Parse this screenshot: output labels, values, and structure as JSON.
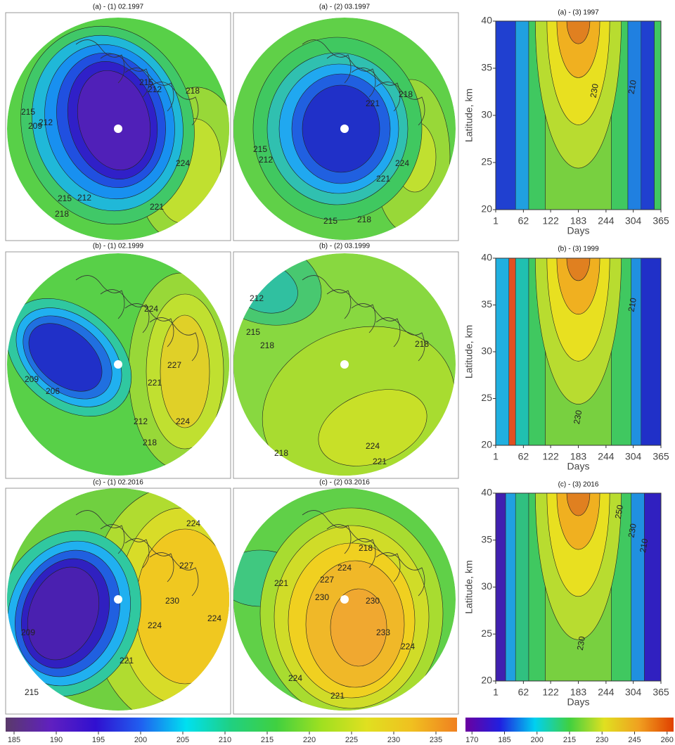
{
  "maps": [
    {
      "title": "(a) - (1)  02.1997",
      "contour_labels": [
        215,
        212,
        209,
        215,
        212,
        218,
        221,
        224,
        218,
        215,
        212
      ]
    },
    {
      "title": "(a) - (2)  03.1997",
      "contour_labels": [
        215,
        212,
        215,
        218,
        221,
        224,
        218,
        221
      ]
    },
    {
      "title": "(b) - (1)  02.1999",
      "contour_labels": [
        209,
        206,
        212,
        218,
        221,
        224,
        227,
        224
      ]
    },
    {
      "title": "(b) - (2)  03.1999",
      "contour_labels": [
        215,
        218,
        212,
        218,
        224,
        221,
        218
      ]
    },
    {
      "title": "(c) - (1)  02.2016",
      "contour_labels": [
        209,
        215,
        221,
        224,
        230,
        227,
        224,
        224
      ]
    },
    {
      "title": "(c) - (2)  03.2016",
      "contour_labels": [
        218,
        224,
        221,
        227,
        230,
        224,
        221,
        233,
        230,
        224
      ]
    }
  ],
  "profiles": {
    "ylabel": "Latitude, km",
    "xlabel": "Days",
    "xlim": [
      1,
      365
    ],
    "xticks": [
      1,
      62,
      122,
      183,
      244,
      304,
      365
    ],
    "ylim": [
      20,
      40
    ],
    "yticks": [
      20,
      25,
      30,
      35,
      40
    ],
    "panels": [
      {
        "title": "(a) - (3) 1997",
        "contour_labels": [
          230,
          210
        ]
      },
      {
        "title": "(b) - (3) 1999",
        "contour_labels": [
          210,
          230
        ]
      },
      {
        "title": "(c) - (3) 2016",
        "contour_labels": [
          250,
          230,
          210,
          230
        ]
      }
    ]
  },
  "colorbars": [
    {
      "lim": [
        184,
        237.5
      ],
      "ticks": [
        185,
        190,
        195,
        200,
        205,
        210,
        215,
        220,
        225,
        230,
        235
      ]
    },
    {
      "lim": [
        167,
        263
      ],
      "ticks": [
        170,
        185,
        200,
        215,
        230,
        245,
        260
      ]
    }
  ]
}
